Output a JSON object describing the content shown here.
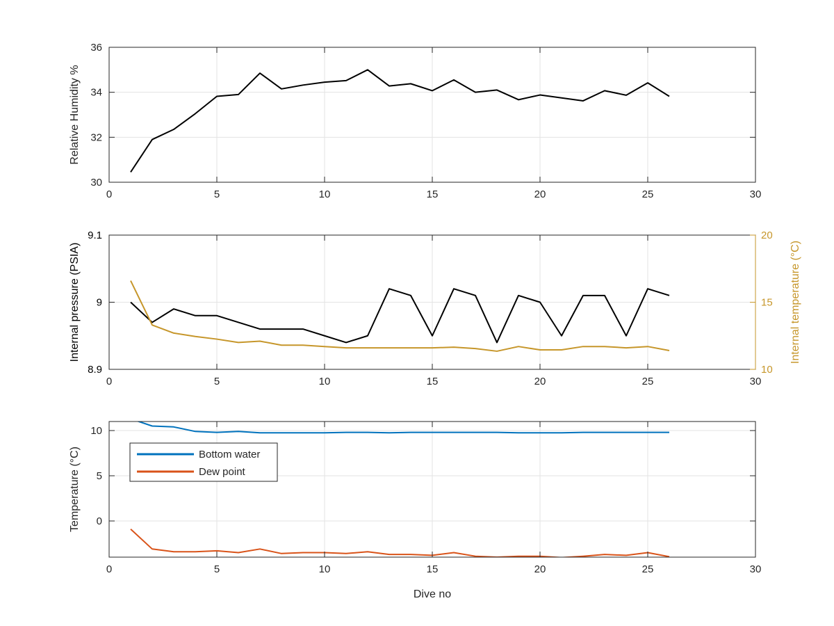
{
  "chart_data": [
    {
      "type": "line",
      "title": "",
      "xlabel": "",
      "ylabel": "Relative Humidity %",
      "xlim": [
        0,
        30
      ],
      "ylim": [
        30,
        36
      ],
      "xticks": [
        0,
        5,
        10,
        15,
        20,
        25,
        30
      ],
      "yticks": [
        30,
        32,
        34,
        36
      ],
      "grid": true,
      "series": [
        {
          "color": "#000000",
          "x": [
            1,
            2,
            3,
            4,
            5,
            6,
            7,
            8,
            9,
            10,
            11,
            12,
            13,
            14,
            15,
            16,
            17,
            18,
            19,
            20,
            21,
            22,
            23,
            24,
            25,
            26
          ],
          "y": [
            30.45,
            31.9,
            32.35,
            33.05,
            33.82,
            33.9,
            34.85,
            34.15,
            34.32,
            34.45,
            34.52,
            35.0,
            34.28,
            34.38,
            34.07,
            34.55,
            34.0,
            34.1,
            33.67,
            33.88,
            33.75,
            33.62,
            34.07,
            33.87,
            34.42,
            33.82
          ]
        }
      ]
    },
    {
      "type": "line",
      "title": "",
      "xlabel": "",
      "ylabel": "Internal pressure (PSIA)",
      "y2label": "Internal temperature (°C)",
      "xlim": [
        0,
        30
      ],
      "ylim": [
        8.9,
        9.1
      ],
      "y2lim": [
        10,
        20
      ],
      "xticks": [
        0,
        5,
        10,
        15,
        20,
        25,
        30
      ],
      "yticks": [
        8.9,
        9,
        9.1
      ],
      "y2ticks": [
        10,
        15,
        20
      ],
      "grid": true,
      "colors": {
        "left_axis": "#000000",
        "right_axis": "#C6962A"
      },
      "series": [
        {
          "axis": "left",
          "color": "#000000",
          "x": [
            1,
            2,
            3,
            4,
            5,
            6,
            7,
            8,
            9,
            10,
            11,
            12,
            13,
            14,
            15,
            16,
            17,
            18,
            19,
            20,
            21,
            22,
            23,
            24,
            25,
            26
          ],
          "y": [
            9.0,
            8.97,
            8.99,
            8.98,
            8.98,
            8.97,
            8.96,
            8.96,
            8.96,
            8.95,
            8.94,
            8.95,
            9.02,
            9.01,
            8.95,
            9.02,
            9.01,
            8.94,
            9.01,
            9.0,
            8.95,
            9.01,
            9.01,
            8.95,
            9.02,
            9.01
          ]
        },
        {
          "axis": "right",
          "color": "#C6962A",
          "x": [
            1,
            2,
            3,
            4,
            5,
            6,
            7,
            8,
            9,
            10,
            11,
            12,
            13,
            14,
            15,
            16,
            17,
            18,
            19,
            20,
            21,
            22,
            23,
            24,
            25,
            26
          ],
          "y": [
            16.6,
            13.3,
            12.7,
            12.45,
            12.25,
            12.0,
            12.1,
            11.8,
            11.8,
            11.7,
            11.6,
            11.6,
            11.6,
            11.6,
            11.6,
            11.65,
            11.55,
            11.35,
            11.7,
            11.45,
            11.45,
            11.7,
            11.7,
            11.6,
            11.7,
            11.4
          ]
        }
      ]
    },
    {
      "type": "line",
      "title": "",
      "xlabel": "Dive no",
      "ylabel": "Temperature (°C)",
      "xlim": [
        0,
        30
      ],
      "ylim": [
        -4,
        11
      ],
      "xticks": [
        0,
        5,
        10,
        15,
        20,
        25,
        30
      ],
      "yticks": [
        0,
        5,
        10
      ],
      "grid": true,
      "legend": {
        "location": "top-left"
      },
      "series": [
        {
          "name": "Bottom water",
          "color": "#0072BD",
          "x": [
            1,
            2,
            3,
            4,
            5,
            6,
            7,
            8,
            9,
            10,
            11,
            12,
            13,
            14,
            15,
            16,
            17,
            18,
            19,
            20,
            21,
            22,
            23,
            24,
            25,
            26
          ],
          "y": [
            11.3,
            10.5,
            10.4,
            9.9,
            9.8,
            9.9,
            9.75,
            9.75,
            9.75,
            9.75,
            9.8,
            9.8,
            9.75,
            9.8,
            9.8,
            9.8,
            9.8,
            9.8,
            9.75,
            9.75,
            9.75,
            9.8,
            9.8,
            9.8,
            9.8,
            9.8
          ]
        },
        {
          "name": "Dew point",
          "color": "#D95319",
          "x": [
            1,
            2,
            3,
            4,
            5,
            6,
            7,
            8,
            9,
            10,
            11,
            12,
            13,
            14,
            15,
            16,
            17,
            18,
            19,
            20,
            21,
            22,
            23,
            24,
            25,
            26
          ],
          "y": [
            -0.9,
            -3.1,
            -3.4,
            -3.4,
            -3.3,
            -3.5,
            -3.1,
            -3.6,
            -3.5,
            -3.5,
            -3.6,
            -3.4,
            -3.7,
            -3.7,
            -3.8,
            -3.5,
            -3.9,
            -4.0,
            -3.9,
            -3.9,
            -4.05,
            -3.9,
            -3.7,
            -3.8,
            -3.5,
            -3.95
          ]
        }
      ]
    }
  ]
}
